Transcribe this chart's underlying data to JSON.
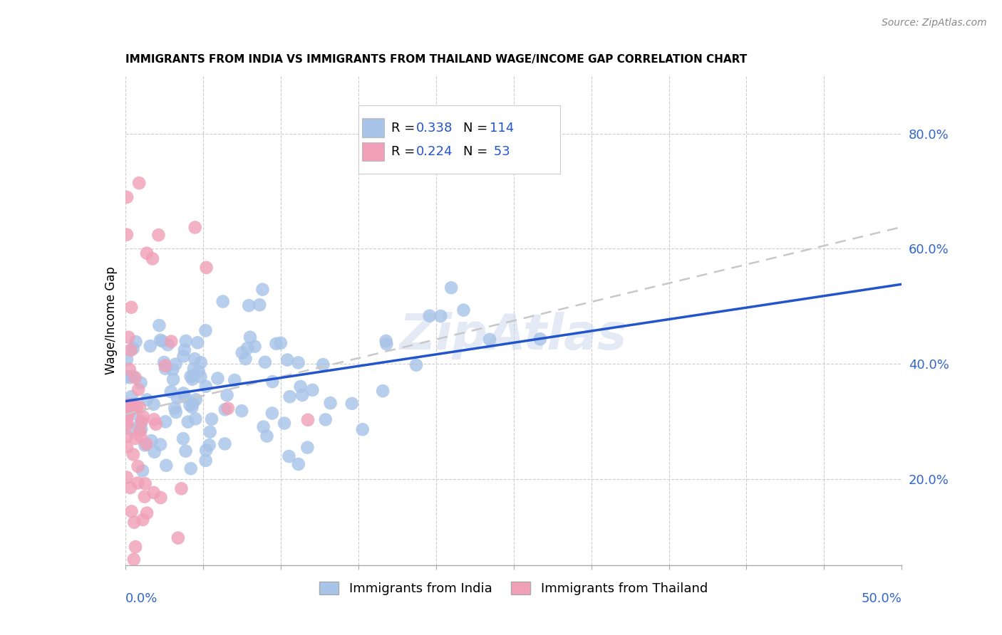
{
  "title": "IMMIGRANTS FROM INDIA VS IMMIGRANTS FROM THAILAND WAGE/INCOME GAP CORRELATION CHART",
  "source": "Source: ZipAtlas.com",
  "ylabel": "Wage/Income Gap",
  "india_color": "#a8c4e8",
  "india_line_color": "#2255cc",
  "thailand_color": "#f0a0b8",
  "thailand_line_color": "#c8c8c8",
  "right_yticks": [
    0.2,
    0.4,
    0.6,
    0.8
  ],
  "right_yticklabels": [
    "20.0%",
    "40.0%",
    "60.0%",
    "80.0%"
  ],
  "xlim": [
    0.0,
    0.5
  ],
  "ylim": [
    0.05,
    0.9
  ],
  "background_color": "#ffffff",
  "grid_color": "#cccccc",
  "title_fontsize": 11,
  "tick_label_color": "#3366cc"
}
